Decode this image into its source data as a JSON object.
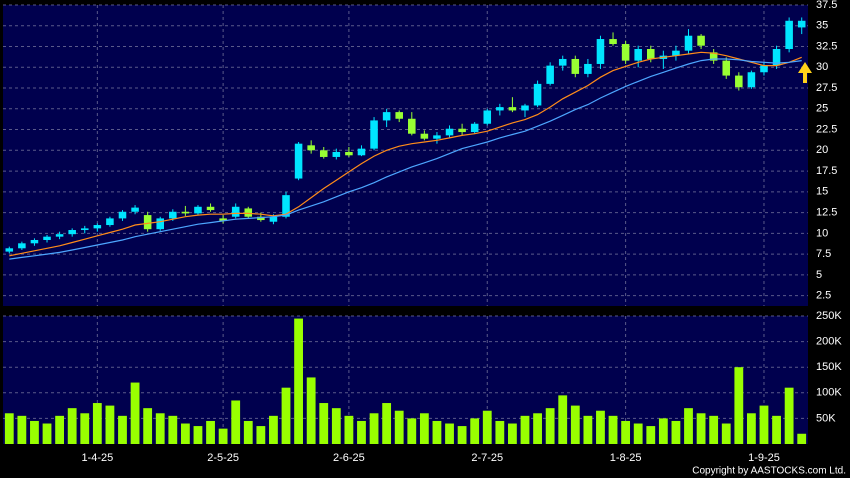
{
  "chart_data": [
    {
      "type": "candlestick",
      "xlim": [
        -0.5,
        63.5
      ],
      "ylim": [
        1.25,
        37.5
      ],
      "yticks": [
        2.5,
        5,
        7.5,
        10,
        12.5,
        15,
        17.5,
        20,
        22.5,
        25,
        27.5,
        30,
        32.5,
        35,
        37.5
      ],
      "grid": true,
      "up_color": "#00e5ff",
      "down_color": "#99ff33",
      "open": [
        7.8,
        8.2,
        8.8,
        9.2,
        9.6,
        9.9,
        10.4,
        10.6,
        11.0,
        11.8,
        12.6,
        12.2,
        10.5,
        11.8,
        12.6,
        12.4,
        13.2,
        11.8,
        12.0,
        13.0,
        12.0,
        11.4,
        12.0,
        16.6,
        20.6,
        20.0,
        19.2,
        19.8,
        19.4,
        20.2,
        23.6,
        24.6,
        23.8,
        22.0,
        21.4,
        21.8,
        22.6,
        22.2,
        23.2,
        24.8,
        25.2,
        24.8,
        25.4,
        28.0,
        30.2,
        31.0,
        29.2,
        30.4,
        33.4,
        32.8,
        30.8,
        32.2,
        31.0,
        31.4,
        32.0,
        33.8,
        31.8,
        30.8,
        29.0,
        27.6,
        29.4,
        30.2,
        32.2,
        34.8
      ],
      "high": [
        8.4,
        9.0,
        9.4,
        9.8,
        10.2,
        10.6,
        10.9,
        11.2,
        12.0,
        12.8,
        13.4,
        12.6,
        12.0,
        12.9,
        13.3,
        13.4,
        13.6,
        12.2,
        13.6,
        13.2,
        12.5,
        12.3,
        15.0,
        21.0,
        21.2,
        20.4,
        20.2,
        20.4,
        20.6,
        24.0,
        25.0,
        24.8,
        24.6,
        22.4,
        22.2,
        23.0,
        23.2,
        23.4,
        25.0,
        25.6,
        26.4,
        25.6,
        28.4,
        30.6,
        31.4,
        31.4,
        31.0,
        33.8,
        34.2,
        33.2,
        32.6,
        32.6,
        32.0,
        32.6,
        34.6,
        34.0,
        32.2,
        31.2,
        29.4,
        29.6,
        30.6,
        32.6,
        36.0,
        36.0
      ],
      "low": [
        7.6,
        8.0,
        8.5,
        8.9,
        9.3,
        9.6,
        10.0,
        10.2,
        10.8,
        11.5,
        12.3,
        10.2,
        10.3,
        11.5,
        12.1,
        12.2,
        12.6,
        11.2,
        11.8,
        11.8,
        11.4,
        11.1,
        11.8,
        16.4,
        19.6,
        19.0,
        18.9,
        19.2,
        19.3,
        20.0,
        22.8,
        23.4,
        21.8,
        21.2,
        20.8,
        21.5,
        21.8,
        22.0,
        23.0,
        24.2,
        24.6,
        24.0,
        25.2,
        27.8,
        29.6,
        28.8,
        28.8,
        29.8,
        32.6,
        30.4,
        30.0,
        30.6,
        29.8,
        30.8,
        31.6,
        32.2,
        30.4,
        28.6,
        27.2,
        27.4,
        29.0,
        29.8,
        31.8,
        34.0
      ],
      "close": [
        8.2,
        8.8,
        9.2,
        9.6,
        9.9,
        10.4,
        10.6,
        11.0,
        11.8,
        12.6,
        13.1,
        10.5,
        11.8,
        12.6,
        12.4,
        13.2,
        12.8,
        11.5,
        13.2,
        12.0,
        11.6,
        12.0,
        14.6,
        20.8,
        20.0,
        19.2,
        19.8,
        19.4,
        20.2,
        23.6,
        24.6,
        23.8,
        22.0,
        21.4,
        21.8,
        22.6,
        22.2,
        23.2,
        24.8,
        25.2,
        24.8,
        25.4,
        28.0,
        30.2,
        31.0,
        29.2,
        30.4,
        33.4,
        32.8,
        30.8,
        32.2,
        31.0,
        31.4,
        32.0,
        33.8,
        32.6,
        30.8,
        29.0,
        27.6,
        29.4,
        30.2,
        32.2,
        35.6,
        35.6
      ],
      "series": [
        {
          "type": "line",
          "color": "#ff8c1a",
          "values": [
            7.3,
            7.6,
            7.9,
            8.2,
            8.5,
            8.9,
            9.3,
            9.7,
            10.1,
            10.5,
            11.0,
            11.2,
            11.4,
            11.7,
            12.0,
            12.2,
            12.3,
            12.3,
            12.4,
            12.4,
            12.3,
            12.1,
            12.3,
            13.2,
            14.3,
            15.4,
            16.4,
            17.4,
            18.4,
            19.3,
            20.0,
            20.5,
            20.8,
            21.0,
            21.2,
            21.5,
            21.8,
            22.0,
            22.3,
            22.8,
            23.3,
            23.7,
            24.3,
            25.2,
            26.2,
            27.0,
            27.8,
            28.8,
            29.6,
            30.1,
            30.6,
            31.0,
            31.2,
            31.4,
            31.6,
            31.8,
            31.7,
            31.4,
            31.0,
            30.6,
            30.2,
            30.2,
            30.6,
            31.2
          ]
        },
        {
          "type": "line",
          "color": "#4da6ff",
          "values": [
            6.9,
            7.1,
            7.3,
            7.5,
            7.7,
            8.0,
            8.3,
            8.6,
            8.9,
            9.2,
            9.6,
            9.9,
            10.2,
            10.5,
            10.8,
            11.1,
            11.3,
            11.5,
            11.7,
            11.8,
            11.9,
            12.0,
            12.2,
            12.8,
            13.3,
            13.8,
            14.4,
            15.0,
            15.5,
            16.1,
            16.8,
            17.4,
            18.0,
            18.5,
            19.0,
            19.6,
            20.2,
            20.6,
            21.0,
            21.5,
            21.9,
            22.3,
            22.9,
            23.5,
            24.2,
            24.9,
            25.5,
            26.3,
            27.0,
            27.7,
            28.3,
            28.9,
            29.4,
            29.9,
            30.4,
            30.8,
            31.0,
            31.0,
            30.9,
            30.7,
            30.6,
            30.5,
            30.6,
            30.8
          ]
        }
      ]
    },
    {
      "type": "bar",
      "xlim": [
        -0.5,
        63.5
      ],
      "xticks": [
        {
          "value": 7,
          "label": "1-4-25"
        },
        {
          "value": 17,
          "label": "2-5-25"
        },
        {
          "value": 27,
          "label": "2-6-25"
        },
        {
          "value": 38,
          "label": "2-7-25"
        },
        {
          "value": 49,
          "label": "1-8-25"
        },
        {
          "value": 60,
          "label": "1-9-25"
        }
      ],
      "ylim": [
        0,
        250000
      ],
      "yticks": [
        {
          "value": 50000,
          "label": "50K"
        },
        {
          "value": 100000,
          "label": "100K"
        },
        {
          "value": 150000,
          "label": "150K"
        },
        {
          "value": 200000,
          "label": "200K"
        },
        {
          "value": 250000,
          "label": "250K"
        }
      ],
      "grid": true,
      "color": "#99ff00",
      "values": [
        60000,
        55000,
        45000,
        40000,
        55000,
        70000,
        60000,
        80000,
        75000,
        55000,
        120000,
        70000,
        60000,
        55000,
        40000,
        35000,
        45000,
        30000,
        85000,
        45000,
        35000,
        55000,
        110000,
        245000,
        130000,
        80000,
        70000,
        55000,
        45000,
        60000,
        80000,
        65000,
        50000,
        60000,
        45000,
        40000,
        35000,
        50000,
        65000,
        45000,
        40000,
        55000,
        60000,
        70000,
        95000,
        75000,
        55000,
        65000,
        55000,
        45000,
        40000,
        35000,
        50000,
        45000,
        70000,
        60000,
        55000,
        40000,
        150000,
        60000,
        75000,
        55000,
        110000,
        20000
      ],
      "annotations": [
        "Copyright by AASTOCKS.com Ltd."
      ]
    }
  ]
}
